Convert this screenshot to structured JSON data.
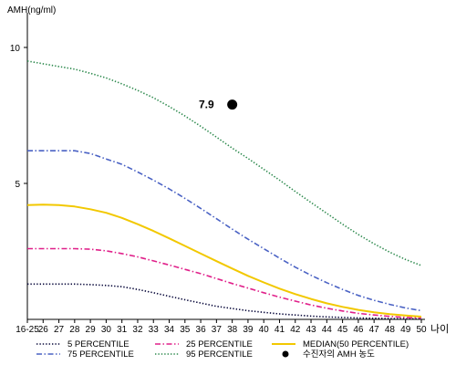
{
  "chart_data": {
    "type": "line",
    "ylabel": "AMH(ng/ml)",
    "xlabel": "나이",
    "x_tick_labels": [
      "16-25",
      "26",
      "27",
      "28",
      "29",
      "30",
      "31",
      "32",
      "33",
      "34",
      "35",
      "36",
      "37",
      "38",
      "39",
      "40",
      "41",
      "42",
      "43",
      "44",
      "45",
      "46",
      "47",
      "48",
      "49",
      "50"
    ],
    "x_values": [
      25,
      26,
      27,
      28,
      29,
      30,
      31,
      32,
      33,
      34,
      35,
      36,
      37,
      38,
      39,
      40,
      41,
      42,
      43,
      44,
      45,
      46,
      47,
      48,
      49,
      50
    ],
    "xlim": [
      25,
      50
    ],
    "ylim": [
      0,
      11
    ],
    "y_ticks": [
      5,
      10
    ],
    "grid": false,
    "legend_position": "bottom",
    "series": [
      {
        "name": "5 PERCENTILE",
        "color": "#0a0a3c",
        "dash": "dotted",
        "values": [
          1.3,
          1.3,
          1.3,
          1.3,
          1.28,
          1.25,
          1.2,
          1.1,
          0.98,
          0.85,
          0.72,
          0.6,
          0.48,
          0.4,
          0.32,
          0.26,
          0.2,
          0.16,
          0.12,
          0.09,
          0.07,
          0.05,
          0.04,
          0.03,
          0.02,
          0.02
        ]
      },
      {
        "name": "25 PERCENTILE",
        "color": "#e0208a",
        "dash": "dashdot",
        "values": [
          2.6,
          2.6,
          2.6,
          2.6,
          2.58,
          2.52,
          2.42,
          2.3,
          2.15,
          2.0,
          1.84,
          1.68,
          1.5,
          1.32,
          1.15,
          0.98,
          0.82,
          0.67,
          0.53,
          0.41,
          0.31,
          0.22,
          0.16,
          0.11,
          0.07,
          0.05
        ]
      },
      {
        "name": "MEDIAN(50 PERCENTILE)",
        "color": "#f2c800",
        "dash": "solid",
        "values": [
          4.2,
          4.22,
          4.2,
          4.15,
          4.05,
          3.92,
          3.73,
          3.5,
          3.25,
          2.98,
          2.7,
          2.42,
          2.14,
          1.87,
          1.6,
          1.36,
          1.13,
          0.93,
          0.75,
          0.59,
          0.46,
          0.35,
          0.26,
          0.19,
          0.14,
          0.1
        ]
      },
      {
        "name": "75 PERCENTILE",
        "color": "#4a62c4",
        "dash": "dashdot",
        "values": [
          6.2,
          6.2,
          6.2,
          6.2,
          6.1,
          5.9,
          5.7,
          5.42,
          5.12,
          4.8,
          4.45,
          4.08,
          3.7,
          3.32,
          2.95,
          2.6,
          2.25,
          1.92,
          1.62,
          1.35,
          1.1,
          0.88,
          0.7,
          0.55,
          0.42,
          0.32
        ]
      },
      {
        "name": "95 PERCENTILE",
        "color": "#2e8a4e",
        "dash": "dotted",
        "values": [
          9.5,
          9.4,
          9.3,
          9.2,
          9.05,
          8.88,
          8.66,
          8.42,
          8.15,
          7.83,
          7.48,
          7.1,
          6.7,
          6.3,
          5.92,
          5.52,
          5.12,
          4.7,
          4.3,
          3.9,
          3.5,
          3.12,
          2.78,
          2.47,
          2.2,
          1.98
        ]
      }
    ],
    "subject_point": {
      "name": "수진자의 AMH 농도",
      "x": 38,
      "y": 7.9,
      "label": "7.9",
      "color": "#000000"
    }
  }
}
